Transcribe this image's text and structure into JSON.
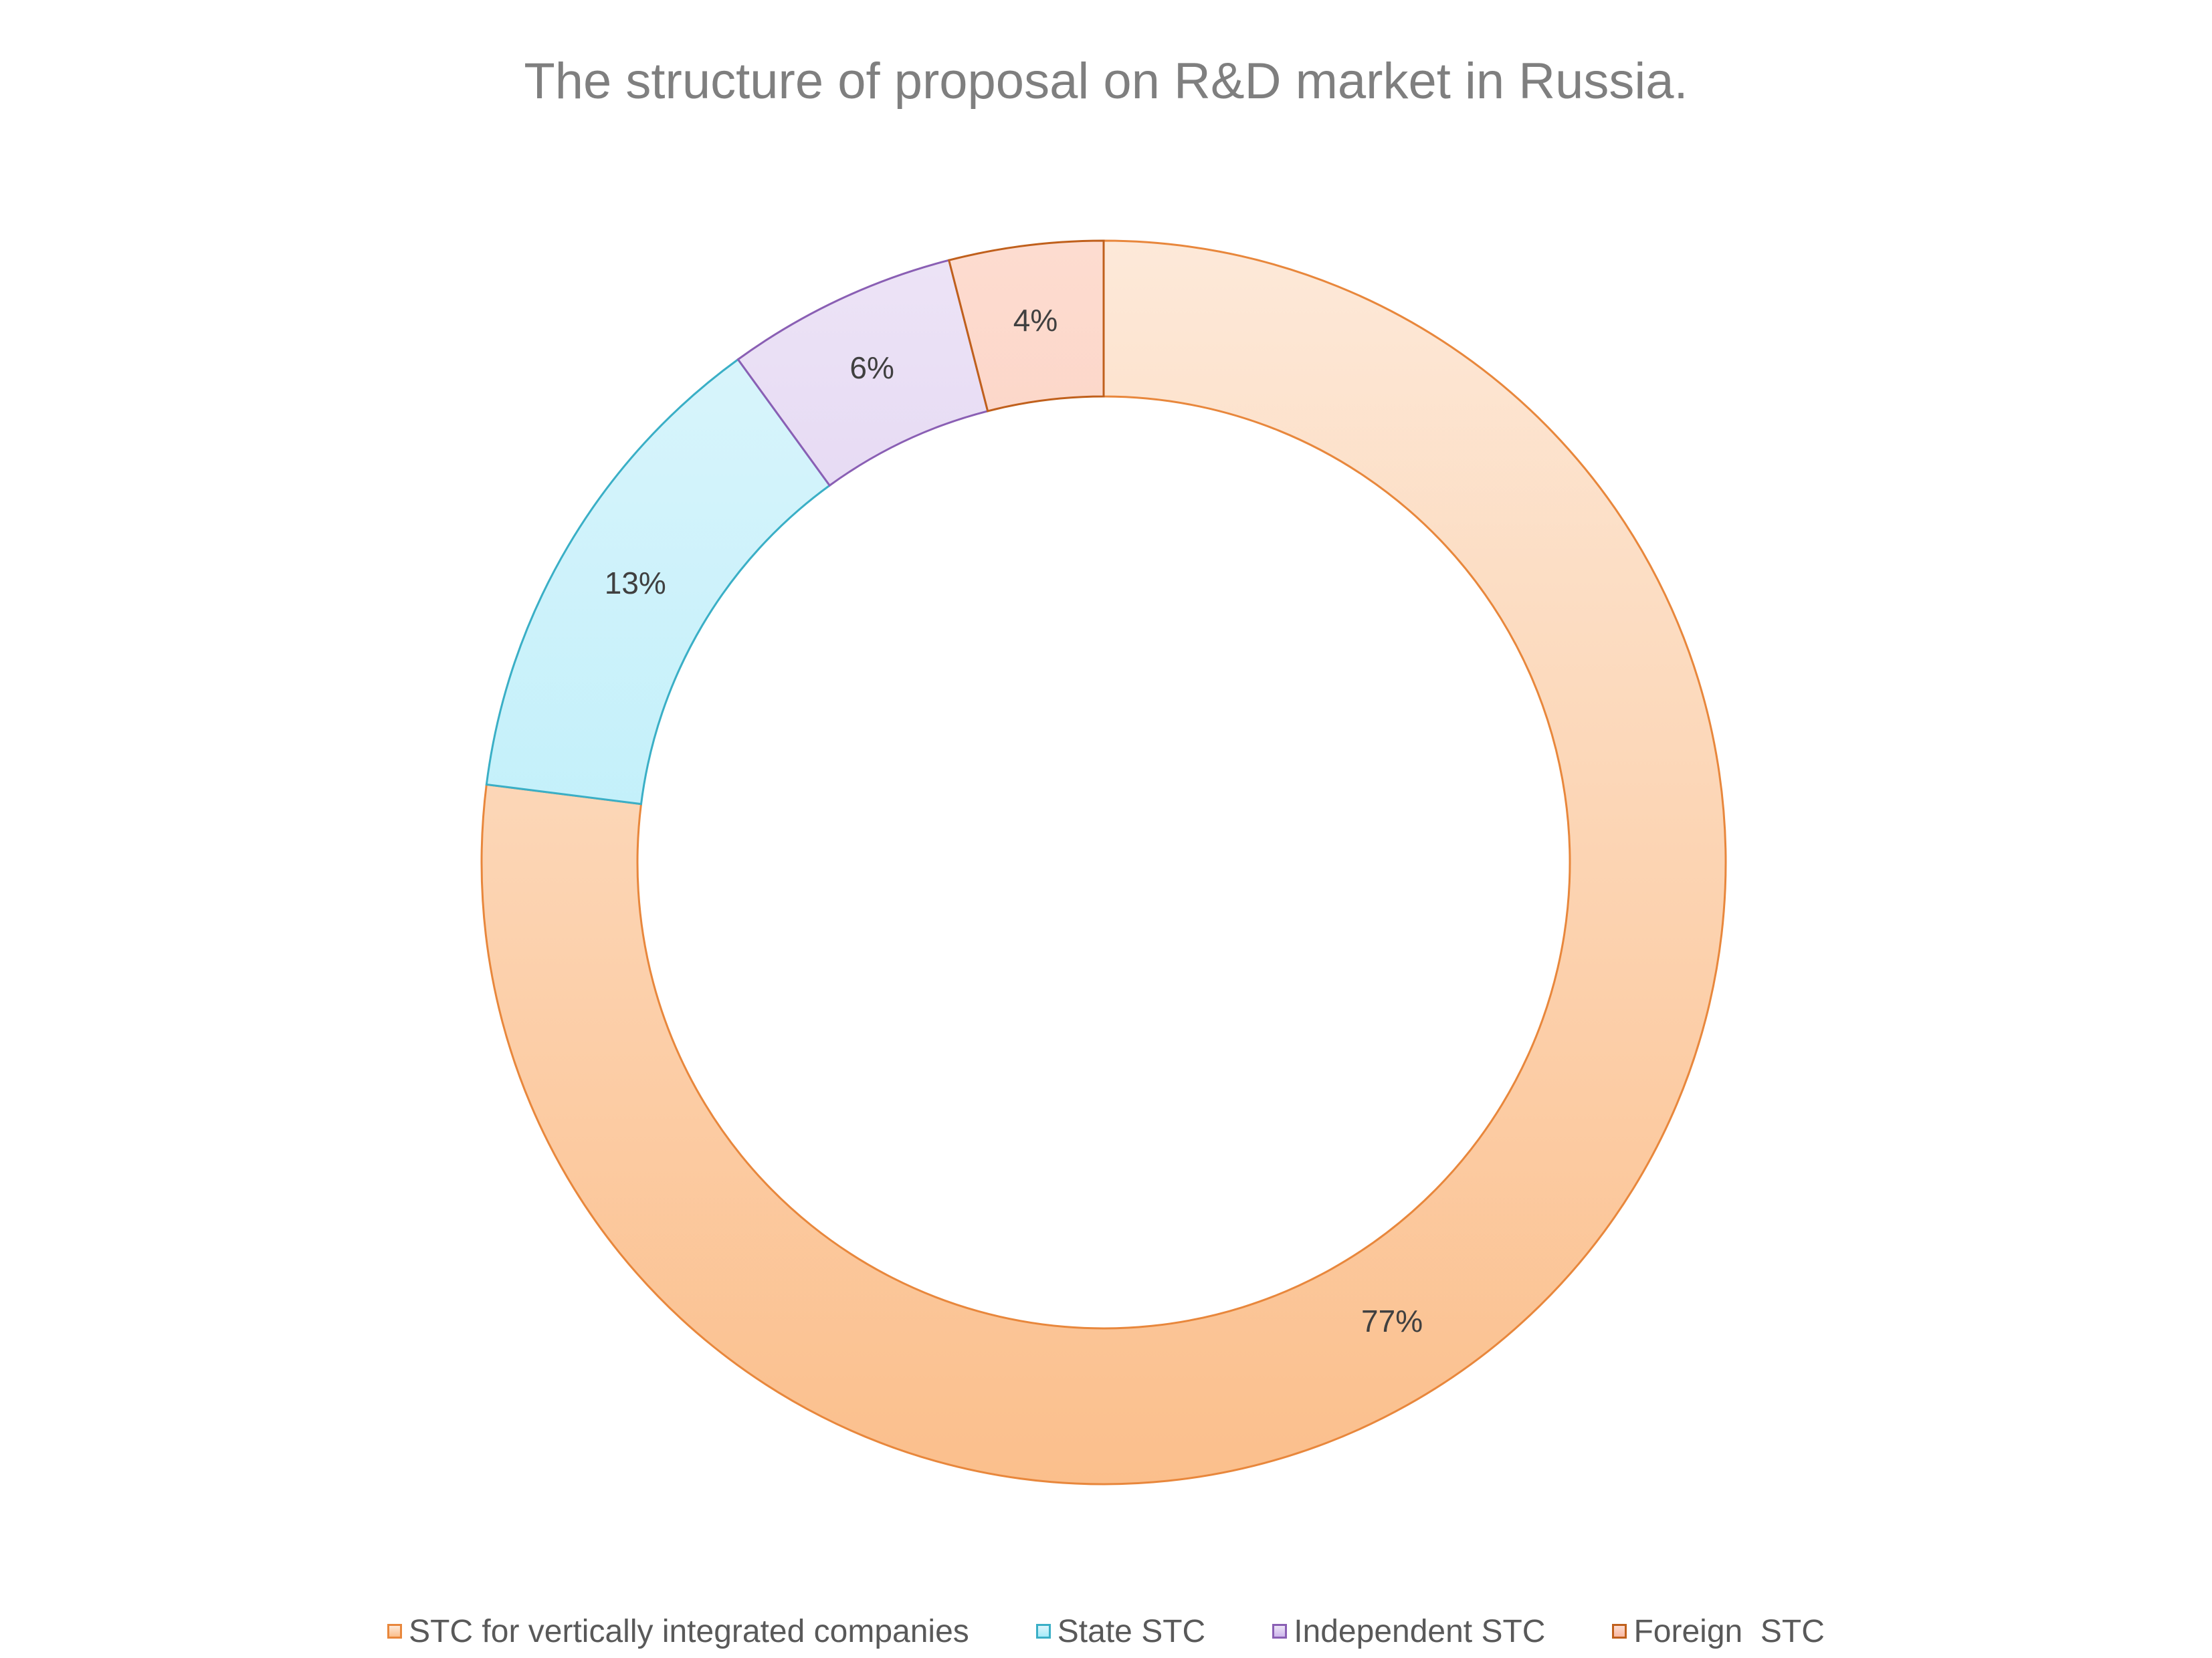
{
  "chart_data": {
    "type": "pie",
    "subtype": "doughnut",
    "title": "The structure of proposal on R&D market in Russia.",
    "legend_position": "bottom",
    "slices": [
      {
        "label": "STC for vertically integrated companies",
        "value": 77,
        "value_label": "77%",
        "fill_top": "#FDE9D9",
        "fill_bottom": "#FBBF8C",
        "stroke": "#E8873C"
      },
      {
        "label": "State STC",
        "value": 13,
        "value_label": "13%",
        "fill_top": "#DDF5FB",
        "fill_bottom": "#A6EBFA",
        "stroke": "#3AAFC6"
      },
      {
        "label": "Independent STC",
        "value": 6,
        "value_label": "6%",
        "fill_top": "#EDE4F6",
        "fill_bottom": "#CDB6EC",
        "stroke": "#8A5FB4"
      },
      {
        "label": "Foreign  STC",
        "value": 4,
        "value_label": "4%",
        "fill_top": "#FDDCD0",
        "fill_bottom": "#F9B8A2",
        "stroke": "#C0601C"
      }
    ]
  }
}
